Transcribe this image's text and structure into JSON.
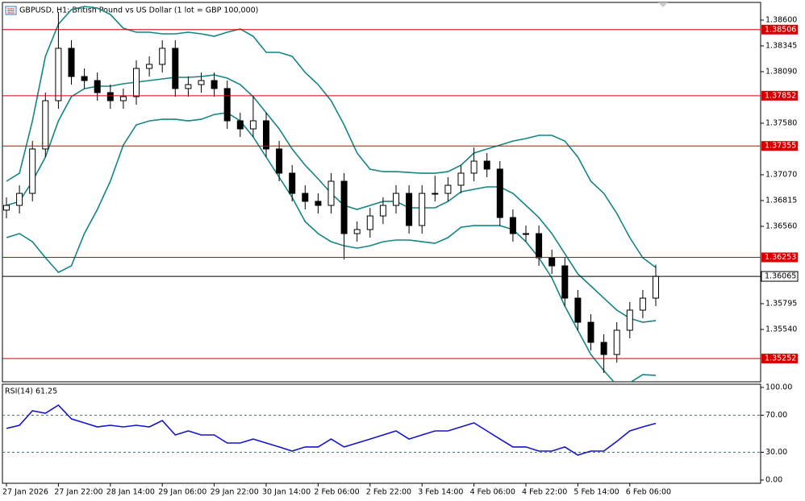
{
  "chart_data": [
    {
      "type": "candlestick",
      "title": "GBPUSD, H1:  British Pound vs US Dollar (1 lot = GBP 100,000)",
      "up_color": "#ffffff",
      "down_color": "#000000",
      "wick_color": "#000000",
      "open": [
        1.3672,
        1.36767,
        1.36886,
        1.37325,
        1.37803,
        1.38321,
        1.38042,
        1.38002,
        1.37883,
        1.37803,
        1.37843,
        1.38122,
        1.38162,
        1.38321,
        1.37923,
        1.37962,
        1.38002,
        1.37923,
        1.37604,
        1.37524,
        1.37604,
        1.37325,
        1.37086,
        1.36886,
        1.36807,
        1.36767,
        1.37006,
        1.36488,
        1.36528,
        1.36663,
        1.36767,
        1.36886,
        1.36568,
        1.36886,
        1.36886,
        1.36966,
        1.37086,
        1.37205,
        1.37126,
        1.36647,
        1.36488,
        1.36488,
        1.36249,
        1.36169,
        1.3585,
        1.35611,
        1.35412,
        1.35292,
        1.35532,
        1.35731,
        1.3585
      ],
      "high": [
        1.36847,
        1.36966,
        1.37405,
        1.37883,
        1.3868,
        1.38401,
        1.38122,
        1.38082,
        1.37963,
        1.37923,
        1.38202,
        1.38242,
        1.38401,
        1.38401,
        1.38042,
        1.38082,
        1.38082,
        1.38003,
        1.37684,
        1.3785,
        1.37684,
        1.37405,
        1.37166,
        1.36966,
        1.36887,
        1.37086,
        1.37086,
        1.36608,
        1.36743,
        1.36847,
        1.36966,
        1.36966,
        1.36966,
        1.3706,
        1.37046,
        1.37166,
        1.3734,
        1.37285,
        1.37206,
        1.36727,
        1.36568,
        1.36568,
        1.36329,
        1.36249,
        1.3593,
        1.35691,
        1.35492,
        1.35612,
        1.35811,
        1.3593,
        1.3618
      ],
      "low": [
        1.3664,
        1.36687,
        1.36806,
        1.37245,
        1.37723,
        1.37962,
        1.37922,
        1.37803,
        1.37723,
        1.37723,
        1.37763,
        1.38042,
        1.38082,
        1.37843,
        1.37843,
        1.37882,
        1.37843,
        1.37524,
        1.37444,
        1.37444,
        1.37245,
        1.37006,
        1.36806,
        1.36727,
        1.36687,
        1.36687,
        1.36233,
        1.36408,
        1.36448,
        1.36583,
        1.36687,
        1.36488,
        1.36488,
        1.36806,
        1.36806,
        1.36886,
        1.37006,
        1.37046,
        1.36567,
        1.36408,
        1.36408,
        1.36169,
        1.36089,
        1.3577,
        1.35531,
        1.35332,
        1.3511,
        1.35212,
        1.35452,
        1.35651,
        1.3577
      ],
      "close": [
        1.36767,
        1.36886,
        1.37325,
        1.37803,
        1.38321,
        1.38042,
        1.38002,
        1.37883,
        1.37803,
        1.37843,
        1.38122,
        1.38162,
        1.38321,
        1.37923,
        1.37962,
        1.38002,
        1.37923,
        1.37604,
        1.37524,
        1.37604,
        1.37325,
        1.37086,
        1.36886,
        1.36807,
        1.36767,
        1.37006,
        1.36488,
        1.36528,
        1.36663,
        1.36767,
        1.36886,
        1.36568,
        1.36886,
        1.36886,
        1.36966,
        1.37086,
        1.37205,
        1.37126,
        1.36647,
        1.36488,
        1.36488,
        1.36249,
        1.36169,
        1.3585,
        1.35611,
        1.35412,
        1.35292,
        1.35532,
        1.35731,
        1.3585,
        1.36065
      ],
      "overlays": [
        {
          "color": "#148484",
          "values": [
            1.37006,
            1.37085,
            1.37603,
            1.38241,
            1.3856,
            1.38703,
            1.38735,
            1.38719,
            1.38656,
            1.3852,
            1.3848,
            1.3848,
            1.38464,
            1.38464,
            1.3848,
            1.38464,
            1.3844,
            1.3848,
            1.38512,
            1.3844,
            1.38281,
            1.38281,
            1.38241,
            1.38082,
            1.37962,
            1.37803,
            1.37564,
            1.37285,
            1.37125,
            1.37101,
            1.37101,
            1.37093,
            1.37085,
            1.37085,
            1.37101,
            1.37165,
            1.37285,
            1.37325,
            1.37364,
            1.37404,
            1.37428,
            1.3746,
            1.3746,
            1.37404,
            1.37245,
            1.37006,
            1.36886,
            1.36687,
            1.36448,
            1.36249,
            1.36153
          ]
        },
        {
          "color": "#148484",
          "values": [
            1.36767,
            1.36806,
            1.37006,
            1.37245,
            1.37603,
            1.37843,
            1.37922,
            1.37946,
            1.37946,
            1.3797,
            1.37986,
            1.38002,
            1.38018,
            1.38034,
            1.38034,
            1.38042,
            1.38058,
            1.38026,
            1.37962,
            1.37843,
            1.37683,
            1.37524,
            1.37325,
            1.37165,
            1.3703,
            1.36886,
            1.36767,
            1.36727,
            1.36767,
            1.36806,
            1.36806,
            1.36743,
            1.36743,
            1.36743,
            1.36806,
            1.36902,
            1.36926,
            1.3695,
            1.3695,
            1.36886,
            1.36767,
            1.36647,
            1.36488,
            1.36288,
            1.36089,
            1.3597,
            1.3585,
            1.35731,
            1.35651,
            1.35611,
            1.35627
          ]
        },
        {
          "color": "#148484",
          "values": [
            1.36448,
            1.36488,
            1.36408,
            1.36249,
            1.36105,
            1.36169,
            1.36488,
            1.36727,
            1.37006,
            1.37364,
            1.37564,
            1.37603,
            1.37619,
            1.37619,
            1.37603,
            1.37619,
            1.37667,
            1.37683,
            1.37603,
            1.37444,
            1.37245,
            1.37046,
            1.36846,
            1.36607,
            1.36488,
            1.36408,
            1.36368,
            1.36344,
            1.36368,
            1.36408,
            1.36424,
            1.36424,
            1.36408,
            1.36392,
            1.36448,
            1.36551,
            1.36567,
            1.36567,
            1.36567,
            1.36528,
            1.36408,
            1.36249,
            1.36049,
            1.3577,
            1.35531,
            1.35292,
            1.35133,
            1.34989,
            1.35013,
            1.35093,
            1.35085
          ]
        }
      ],
      "ylim": [
        1.35022,
        1.38775
      ],
      "yticks": [
        {
          "value": 1.386,
          "label": "1.38600"
        },
        1.38345,
        {
          "value": 1.3809,
          "label": "1.38090"
        },
        {
          "value": 1.3758,
          "label": "1.37580"
        },
        {
          "value": 1.3707,
          "label": "1.37070"
        },
        1.36815,
        {
          "value": 1.3656,
          "label": "1.36560"
        },
        1.35795,
        {
          "value": 1.3554,
          "label": "1.35540"
        }
      ],
      "levels": [
        1.38506,
        1.37852,
        1.37355,
        1.36253,
        1.35252
      ],
      "level_color": "#d40000",
      "current_price": 1.36065
    },
    {
      "type": "line",
      "title": "RSI(14) 61.25",
      "categories": [
        "27 Jan 2026",
        null,
        null,
        null,
        "27 Jan 22:00",
        null,
        null,
        null,
        "28 Jan 14:00",
        null,
        null,
        null,
        "29 Jan 06:00",
        null,
        null,
        null,
        "29 Jan 22:00",
        null,
        null,
        null,
        "30 Jan 14:00",
        null,
        null,
        null,
        "2 Feb 06:00",
        null,
        null,
        null,
        "2 Feb 22:00",
        null,
        null,
        null,
        "3 Feb 14:00",
        null,
        null,
        null,
        "4 Feb 06:00",
        null,
        null,
        null,
        "4 Feb 22:00",
        null,
        null,
        null,
        "5 Feb 14:00",
        null,
        null,
        null,
        "6 Feb 06:00",
        null,
        null
      ],
      "series": [
        {
          "color": "#1414c8",
          "values": [
            55.7,
            59.1,
            74.8,
            72.2,
            80.9,
            66.1,
            61.7,
            57.4,
            59.1,
            57.4,
            59.1,
            57.4,
            64.3,
            48.7,
            53.0,
            48.7,
            48.7,
            40.0,
            40.0,
            44.3,
            40.0,
            35.7,
            31.3,
            35.7,
            35.7,
            44.3,
            35.7,
            40.0,
            44.3,
            48.7,
            53.0,
            44.3,
            48.7,
            53.0,
            53.0,
            57.4,
            61.7,
            53.0,
            44.3,
            35.7,
            35.7,
            31.3,
            31.3,
            35.7,
            27.0,
            31.3,
            31.3,
            41.7,
            53.0,
            57.4,
            61.25
          ]
        }
      ],
      "ylim": [
        0,
        100
      ],
      "yticks": [
        {
          "value": 100,
          "label": "100.00"
        },
        {
          "value": 70,
          "label": "70.00"
        },
        {
          "value": 30,
          "label": "30.00"
        },
        {
          "value": 0,
          "label": "0.00"
        }
      ],
      "grid": true,
      "grid_color": "#2e8b57"
    }
  ]
}
